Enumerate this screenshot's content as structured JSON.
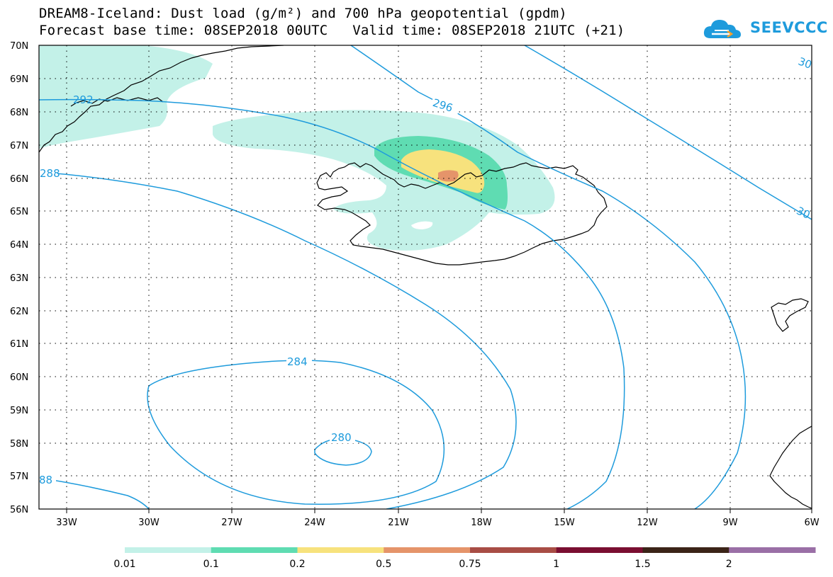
{
  "header": {
    "title_line1": "DREAM8-Iceland: Dust load (g/m²) and 700 hPa geopotential (gpdm)",
    "title_line2": "Forecast base time: 08SEP2018 00UTC   Valid time: 08SEP2018 21UTC (+21)"
  },
  "logo": {
    "text": "SEEVCCC",
    "color": "#1e9bdc"
  },
  "map": {
    "lat_labels": [
      "70N",
      "69N",
      "68N",
      "67N",
      "66N",
      "65N",
      "64N",
      "63N",
      "62N",
      "61N",
      "60N",
      "59N",
      "58N",
      "57N",
      "56N"
    ],
    "lon_labels": [
      "33W",
      "30W",
      "27W",
      "24W",
      "21W",
      "18W",
      "15W",
      "12W",
      "9W",
      "6W"
    ],
    "isoline_color": "#1e9bdc",
    "isoline_labels": [
      "292",
      "296",
      "30",
      "288",
      "30",
      "284",
      "280",
      "88"
    ]
  },
  "colorbar": {
    "colors": [
      "#c3f1e8",
      "#5fdcb2",
      "#f7e27d",
      "#e5946a",
      "#a84d45",
      "#7a0e31",
      "#3b2418",
      "#9a6fa6"
    ],
    "labels": [
      "0.01",
      "0.1",
      "0.2",
      "0.5",
      "0.75",
      "1",
      "1.5",
      "2"
    ]
  }
}
